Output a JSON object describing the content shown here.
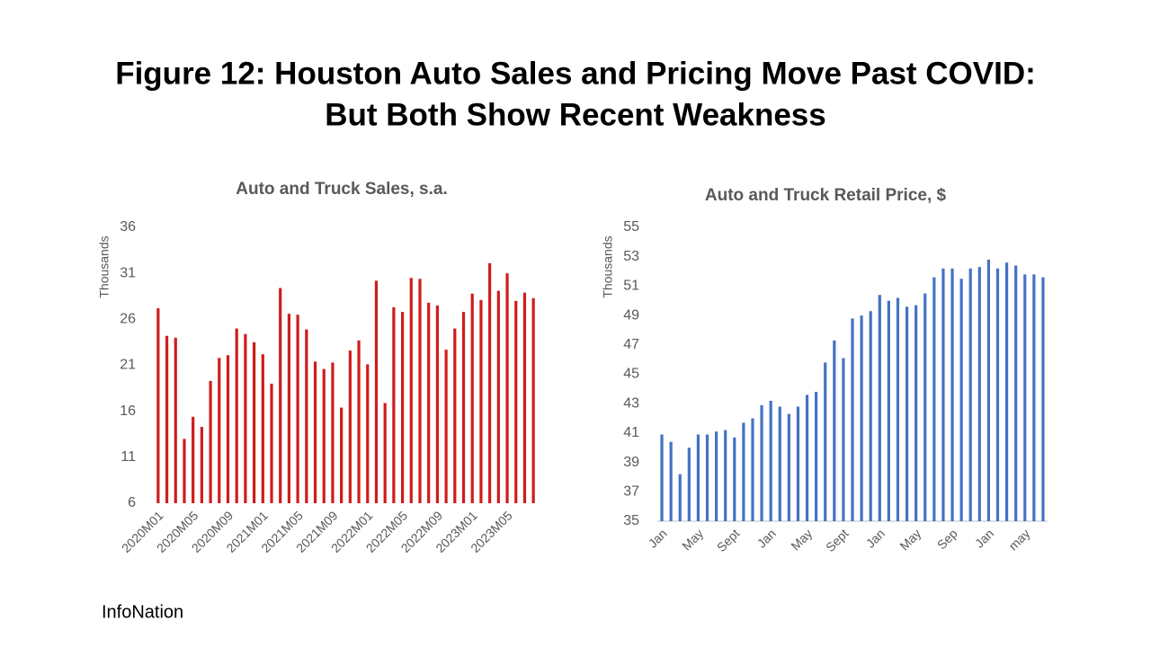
{
  "title": [
    "Figure 12: Houston Auto Sales and Pricing Move Past COVID:",
    "But Both Show Recent Weakness"
  ],
  "footer": "InfoNation",
  "chart_data": [
    {
      "type": "bar",
      "title": "Auto and Truck Sales, s.a.",
      "y_label": "Thousands",
      "color": "#d01c1c",
      "categories": [
        "2020M01",
        null,
        null,
        null,
        "2020M05",
        null,
        null,
        null,
        "2020M09",
        null,
        null,
        null,
        "2021M01",
        null,
        null,
        null,
        "2021M05",
        null,
        null,
        null,
        "2021M09",
        null,
        null,
        null,
        "2022M01",
        null,
        null,
        null,
        "2022M05",
        null,
        null,
        null,
        "2022M09",
        null,
        null,
        null,
        "2023M01",
        null,
        null,
        null,
        "2023M05",
        null,
        null,
        null
      ],
      "values": [
        27.2,
        24.2,
        24.0,
        13.0,
        15.4,
        14.3,
        19.3,
        21.8,
        22.1,
        25.0,
        24.4,
        23.5,
        22.2,
        19.0,
        29.4,
        26.6,
        26.5,
        24.9,
        21.4,
        20.6,
        21.3,
        16.4,
        22.6,
        23.7,
        21.1,
        30.2,
        16.9,
        27.3,
        26.8,
        30.5,
        30.4,
        27.8,
        27.5,
        22.7,
        25.0,
        26.8,
        28.8,
        28.1,
        32.1,
        29.1,
        31.0,
        28.0,
        28.9,
        28.3
      ],
      "ylim": [
        6,
        36
      ],
      "yticks": [
        6,
        11,
        16,
        21,
        26,
        31,
        36
      ],
      "grid": false
    },
    {
      "type": "bar",
      "title": "Auto and Truck Retail Price, $",
      "y_label": "Thousands",
      "color": "#4472c4",
      "categories": [
        "Jan",
        null,
        null,
        null,
        "May",
        null,
        null,
        null,
        "Sept",
        null,
        null,
        null,
        "Jan",
        null,
        null,
        null,
        "May",
        null,
        null,
        null,
        "Sept",
        null,
        null,
        null,
        "Jan",
        null,
        null,
        null,
        "May",
        null,
        null,
        null,
        "Sep",
        null,
        null,
        null,
        "Jan",
        null,
        null,
        null,
        "may",
        null,
        null
      ],
      "values": [
        40.9,
        40.4,
        38.2,
        40.0,
        40.9,
        40.9,
        41.1,
        41.2,
        40.7,
        41.7,
        42.0,
        42.9,
        43.2,
        42.8,
        42.3,
        42.8,
        43.6,
        43.8,
        45.8,
        47.3,
        46.1,
        48.8,
        49.0,
        49.3,
        50.4,
        50.0,
        50.2,
        49.6,
        49.7,
        50.5,
        51.6,
        52.2,
        52.2,
        51.5,
        52.2,
        52.3,
        52.8,
        52.2,
        52.6,
        52.4,
        51.8,
        51.8,
        51.6
      ],
      "ylim": [
        35,
        55
      ],
      "yticks": [
        35,
        37,
        39,
        41,
        43,
        45,
        47,
        49,
        51,
        53,
        55
      ],
      "grid": false
    }
  ]
}
